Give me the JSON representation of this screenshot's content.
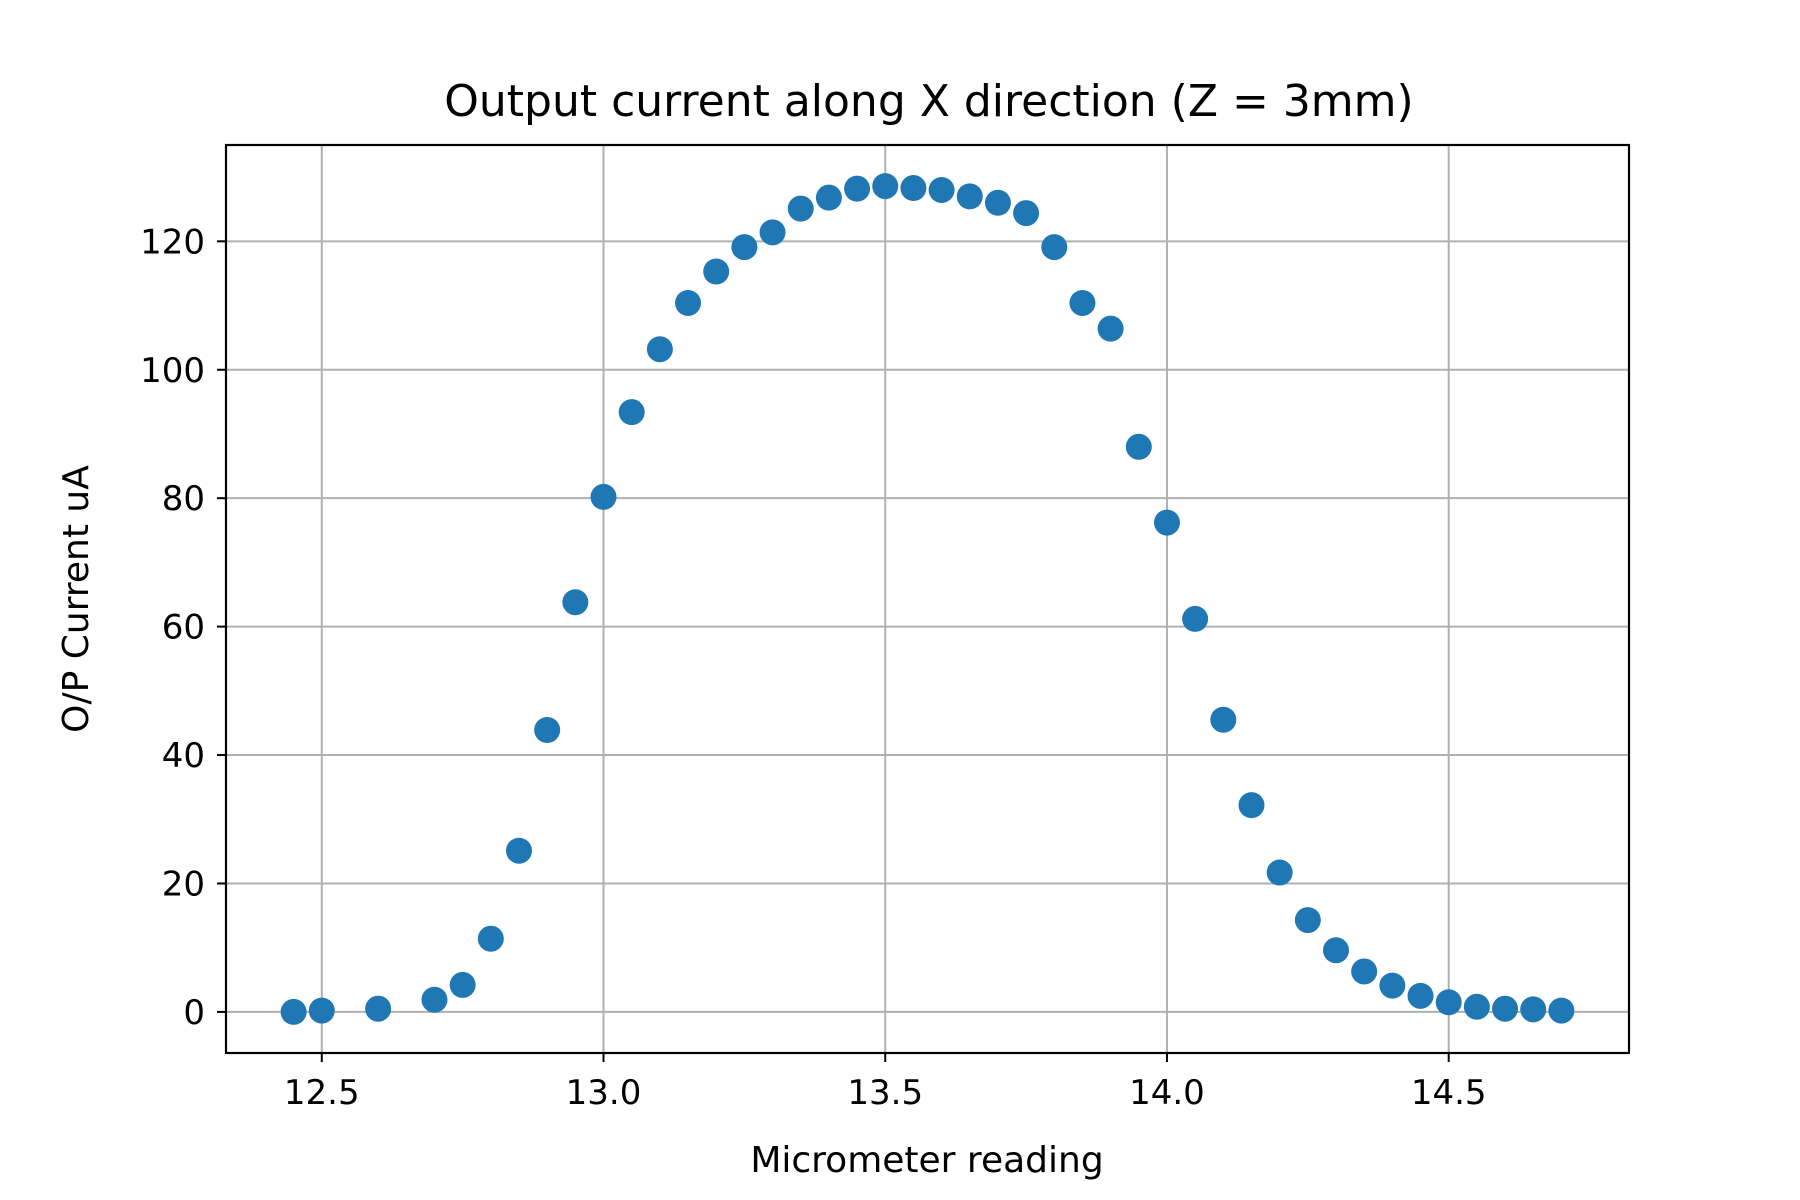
{
  "chart_data": {
    "type": "scatter",
    "title": "Output current along X direction (Z = 3mm)",
    "xlabel": "Micrometer reading",
    "ylabel": "O/P Current uA",
    "xlim": [
      12.33,
      14.82
    ],
    "ylim": [
      -6.4,
      135
    ],
    "xticks": [
      12.5,
      13.0,
      13.5,
      14.0,
      14.5
    ],
    "xtick_labels": [
      "12.5",
      "13.0",
      "13.5",
      "14.0",
      "14.5"
    ],
    "yticks": [
      0,
      20,
      40,
      60,
      80,
      100,
      120
    ],
    "ytick_labels": [
      "0",
      "20",
      "40",
      "60",
      "80",
      "100",
      "120"
    ],
    "grid": true,
    "color": "#1f77b4",
    "series": [
      {
        "x": [
          12.45,
          12.5,
          12.6,
          12.7,
          12.75,
          12.8,
          12.85,
          12.9,
          12.95,
          13.0,
          13.05,
          13.1,
          13.15,
          13.2,
          13.25,
          13.3,
          13.35,
          13.4,
          13.45,
          13.5,
          13.55,
          13.6,
          13.65,
          13.7,
          13.75,
          13.8,
          13.85,
          13.9,
          13.95,
          14.0,
          14.05,
          14.1,
          14.15,
          14.2,
          14.25,
          14.3,
          14.35,
          14.4,
          14.45,
          14.5,
          14.55,
          14.6,
          14.65,
          14.7
        ],
        "y": [
          0,
          0.2,
          0.5,
          1.9,
          4.2,
          11.4,
          25.1,
          43.9,
          63.8,
          80.2,
          93.4,
          103.2,
          110.4,
          115.3,
          119.1,
          121.4,
          125.1,
          126.8,
          128.2,
          128.6,
          128.3,
          128.0,
          127.0,
          126.0,
          124.4,
          119.1,
          110.4,
          106.4,
          88.0,
          76.2,
          61.2,
          45.5,
          32.2,
          21.7,
          14.3,
          9.6,
          6.3,
          4.1,
          2.5,
          1.5,
          0.8,
          0.5,
          0.4,
          0.2
        ]
      }
    ]
  }
}
